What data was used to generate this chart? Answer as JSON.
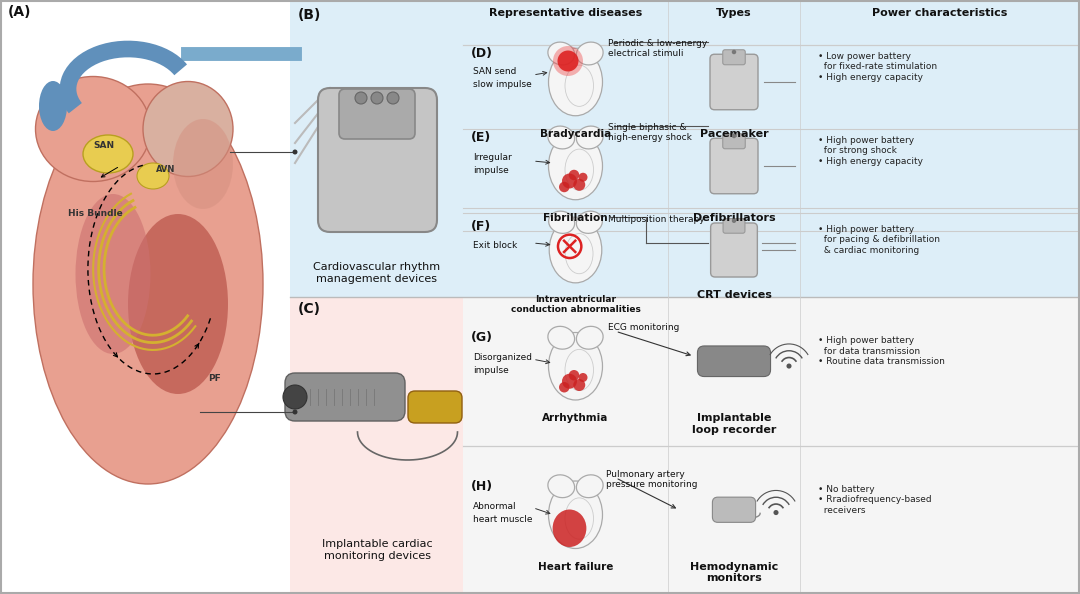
{
  "bg_color": "#ffffff",
  "panel_B_bg": "#ddeef8",
  "panel_C_bg": "#fce8e6",
  "panel_DEF_bg": "#ddeef8",
  "panel_GH_bg": "#f5f5f5",
  "header_cols": [
    "Representative diseases",
    "Types",
    "Power characteristics"
  ],
  "panel_B_title": "Cardiovascular rhythm\nmanagement devices",
  "panel_C_title": "Implantable cardiac\nmonitoring devices",
  "panel_D_label": "(D)",
  "panel_D_disease": "Bradycardia",
  "panel_D_disease_note1": "SAN send",
  "panel_D_disease_note2": "slow impulse",
  "panel_D_type_label": "Pacemaker",
  "panel_D_signal": "Periodic & low-energy\nelectrical stimuli",
  "panel_D_power": "• Low power battery\n  for fixed-rate stimulation\n• High energy capacity",
  "panel_E_label": "(E)",
  "panel_E_disease": "Fibrillation",
  "panel_E_disease_note1": "Irregular",
  "panel_E_disease_note2": "impulse",
  "panel_E_type_label": "Defibrillators",
  "panel_E_signal": "Single biphasic &\nhigh-energy shock",
  "panel_E_power": "• High power battery\n  for strong shock\n• High energy capacity",
  "panel_F_label": "(F)",
  "panel_F_disease": "Intraventricular\nconduction abnormalities",
  "panel_F_disease_note1": "Exit block",
  "panel_F_type_label": "CRT devices",
  "panel_F_signal": "Multiposition therapy",
  "panel_F_power": "• High power battery\n  for pacing & defibrillation\n  & cardiac monitoring",
  "panel_G_label": "(G)",
  "panel_G_disease": "Arrhythmia",
  "panel_G_disease_note1": "Disorganized",
  "panel_G_disease_note2": "impulse",
  "panel_G_type_label": "Implantable\nloop recorder",
  "panel_G_signal": "ECG monitoring",
  "panel_G_power": "• High power battery\n  for data transmission\n• Routine data transmission",
  "panel_H_label": "(H)",
  "panel_H_disease": "Heart failure",
  "panel_H_disease_note1": "Abnormal",
  "panel_H_disease_note2": "heart muscle",
  "panel_H_type_label": "Hemodynamic\nmonitors",
  "panel_H_signal": "Pulmonary artery\npressure monitoring",
  "panel_H_power": "• No battery\n• Rradiofrequency-based\n  receivers"
}
